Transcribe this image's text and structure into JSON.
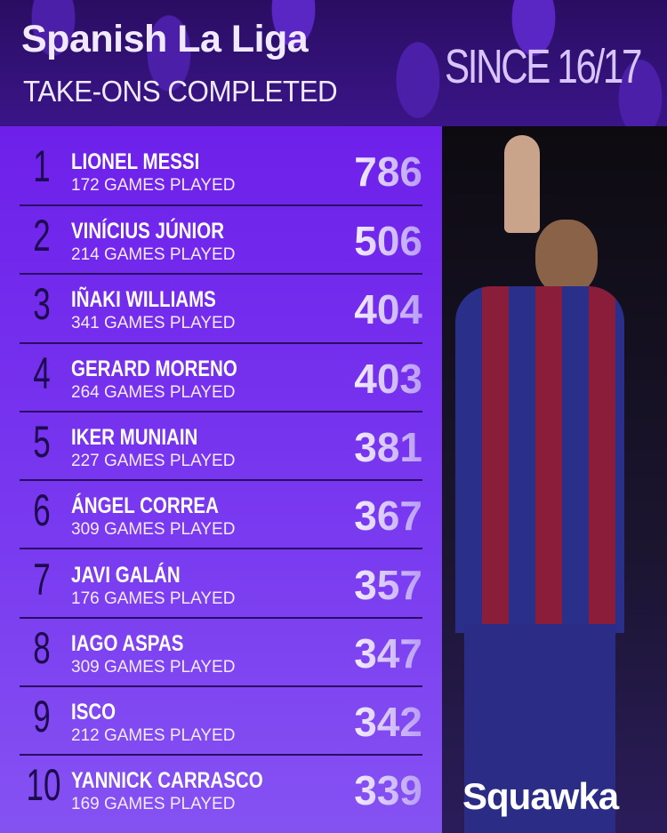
{
  "header": {
    "title": "Spanish La Liga",
    "subtitle": "TAKE-ONS COMPLETED",
    "period": "SINCE 16/17"
  },
  "rows": [
    {
      "rank": "1",
      "name": "LIONEL MESSI",
      "games": "172 GAMES PLAYED",
      "value": "786"
    },
    {
      "rank": "2",
      "name": "VINÍCIUS JÚNIOR",
      "games": "214 GAMES PLAYED",
      "value": "506"
    },
    {
      "rank": "3",
      "name": "IÑAKI WILLIAMS",
      "games": "341 GAMES PLAYED",
      "value": "404"
    },
    {
      "rank": "4",
      "name": "GERARD MORENO",
      "games": "264 GAMES PLAYED",
      "value": "403"
    },
    {
      "rank": "5",
      "name": "IKER MUNIAIN",
      "games": "227 GAMES PLAYED",
      "value": "381"
    },
    {
      "rank": "6",
      "name": "ÁNGEL CORREA",
      "games": "309 GAMES PLAYED",
      "value": "367"
    },
    {
      "rank": "7",
      "name": "JAVI GALÁN",
      "games": "176 GAMES PLAYED",
      "value": "357"
    },
    {
      "rank": "8",
      "name": "IAGO ASPAS",
      "games": "309 GAMES PLAYED",
      "value": "347"
    },
    {
      "rank": "9",
      "name": "ISCO",
      "games": "212 GAMES PLAYED",
      "value": "342"
    },
    {
      "rank": "10",
      "name": "YANNICK CARRASCO",
      "games": "169 GAMES PLAYED",
      "value": "339"
    }
  ],
  "brand": {
    "logo": "Squawka"
  },
  "colors": {
    "header_bg": "#2a0d62",
    "panel": "#6e20ea",
    "value_text": "#f4eeff"
  }
}
